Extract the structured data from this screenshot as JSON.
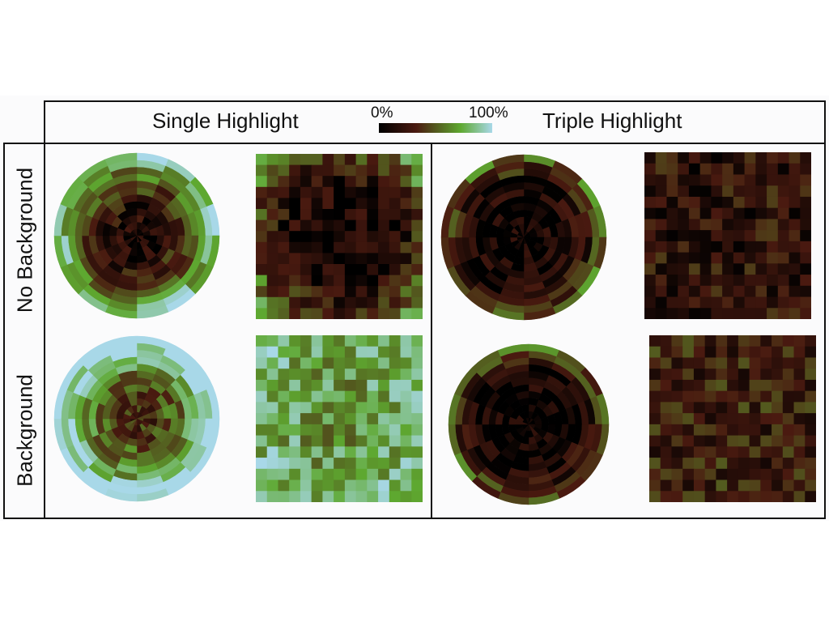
{
  "columns": {
    "single": "Single Highlight",
    "triple": "Triple Highlight"
  },
  "rows": {
    "no_background": "No Background",
    "background": "Background"
  },
  "colorbar": {
    "min_label": "0%",
    "max_label": "100%",
    "stops": [
      "#000000",
      "#4a1a10",
      "#5ea830",
      "#a8d8e8"
    ]
  },
  "chart_data": [
    {
      "type": "heatmap",
      "layout": "radial",
      "condition": "Single Highlight / No Background",
      "rings": 12,
      "sectors": 16,
      "seed": 11,
      "profile": "edge-high",
      "offset": 0.0
    },
    {
      "type": "heatmap",
      "layout": "grid",
      "condition": "Single Highlight / No Background",
      "rows": 15,
      "cols": 15,
      "seed": 23,
      "profile": "corner-high",
      "offset": 0.0
    },
    {
      "type": "heatmap",
      "layout": "radial",
      "condition": "Triple Highlight / No Background",
      "rings": 12,
      "sectors": 16,
      "seed": 37,
      "profile": "edge-low",
      "offset": -0.05
    },
    {
      "type": "heatmap",
      "layout": "grid",
      "condition": "Triple Highlight / No Background",
      "rows": 15,
      "cols": 15,
      "seed": 41,
      "profile": "uniform-low",
      "offset": 0.0
    },
    {
      "type": "heatmap",
      "layout": "radial",
      "condition": "Single Highlight / Background",
      "rings": 12,
      "sectors": 16,
      "seed": 53,
      "profile": "edge-high",
      "offset": 0.25
    },
    {
      "type": "heatmap",
      "layout": "grid",
      "condition": "Single Highlight / Background",
      "rows": 15,
      "cols": 15,
      "seed": 67,
      "profile": "mostly-high",
      "offset": 0.0
    },
    {
      "type": "heatmap",
      "layout": "radial",
      "condition": "Triple Highlight / Background",
      "rings": 12,
      "sectors": 16,
      "seed": 71,
      "profile": "edge-low",
      "offset": -0.08
    },
    {
      "type": "heatmap",
      "layout": "grid",
      "condition": "Triple Highlight / Background",
      "rows": 15,
      "cols": 15,
      "seed": 89,
      "profile": "uniform-mid",
      "offset": 0.0
    }
  ]
}
